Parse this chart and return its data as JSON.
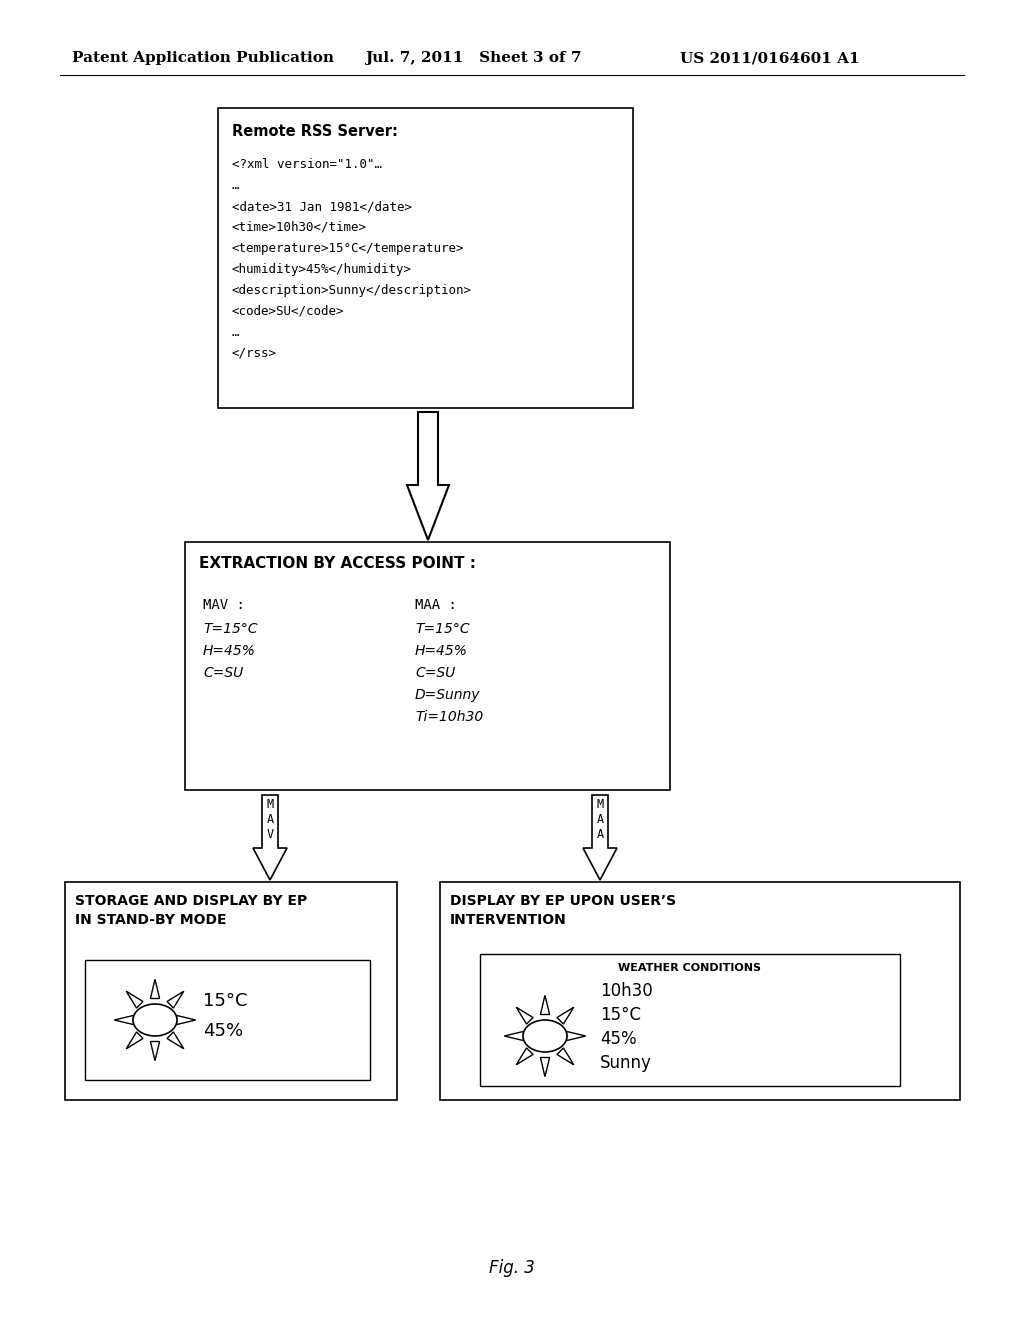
{
  "bg_color": "#ffffff",
  "header_left": "Patent Application Publication",
  "header_mid": "Jul. 7, 2011   Sheet 3 of 7",
  "header_right": "US 2011/0164601 A1",
  "footer": "Fig. 3",
  "box1_title": "Remote RSS Server:",
  "box1_lines": [
    "<?xml version=\"1.0\"…",
    "…",
    "<date>31 Jan 1981</date>",
    "<time>10h30</time>",
    "<temperature>15°C</temperature>",
    "<humidity>45%</humidity>",
    "<description>Sunny</description>",
    "<code>SU</code>",
    "…",
    "</rss>"
  ],
  "box2_title": "EXTRACTION BY ACCESS POINT :",
  "box2_col1_header": "MAV :",
  "box2_col1_lines": [
    "T=15°C",
    "H=45%",
    "C=SU"
  ],
  "box2_col2_header": "MAA :",
  "box2_col2_lines": [
    "T=15°C",
    "H=45%",
    "C=SU",
    "D=Sunny",
    "Ti=10h30"
  ],
  "box3_title": "STORAGE AND DISPLAY BY EP\nIN STAND-BY MODE",
  "box3_lines": [
    "15°C",
    "45%"
  ],
  "box4_title": "DISPLAY BY EP UPON USER’S\nINTERVENTION",
  "box4_inner_title": "WEATHER CONDITIONS",
  "box4_lines": [
    "10h30",
    "15°C",
    "45%",
    "Sunny"
  ],
  "larrow_labels": [
    "M",
    "A",
    "V"
  ],
  "rarrow_labels": [
    "M",
    "A",
    "A"
  ]
}
